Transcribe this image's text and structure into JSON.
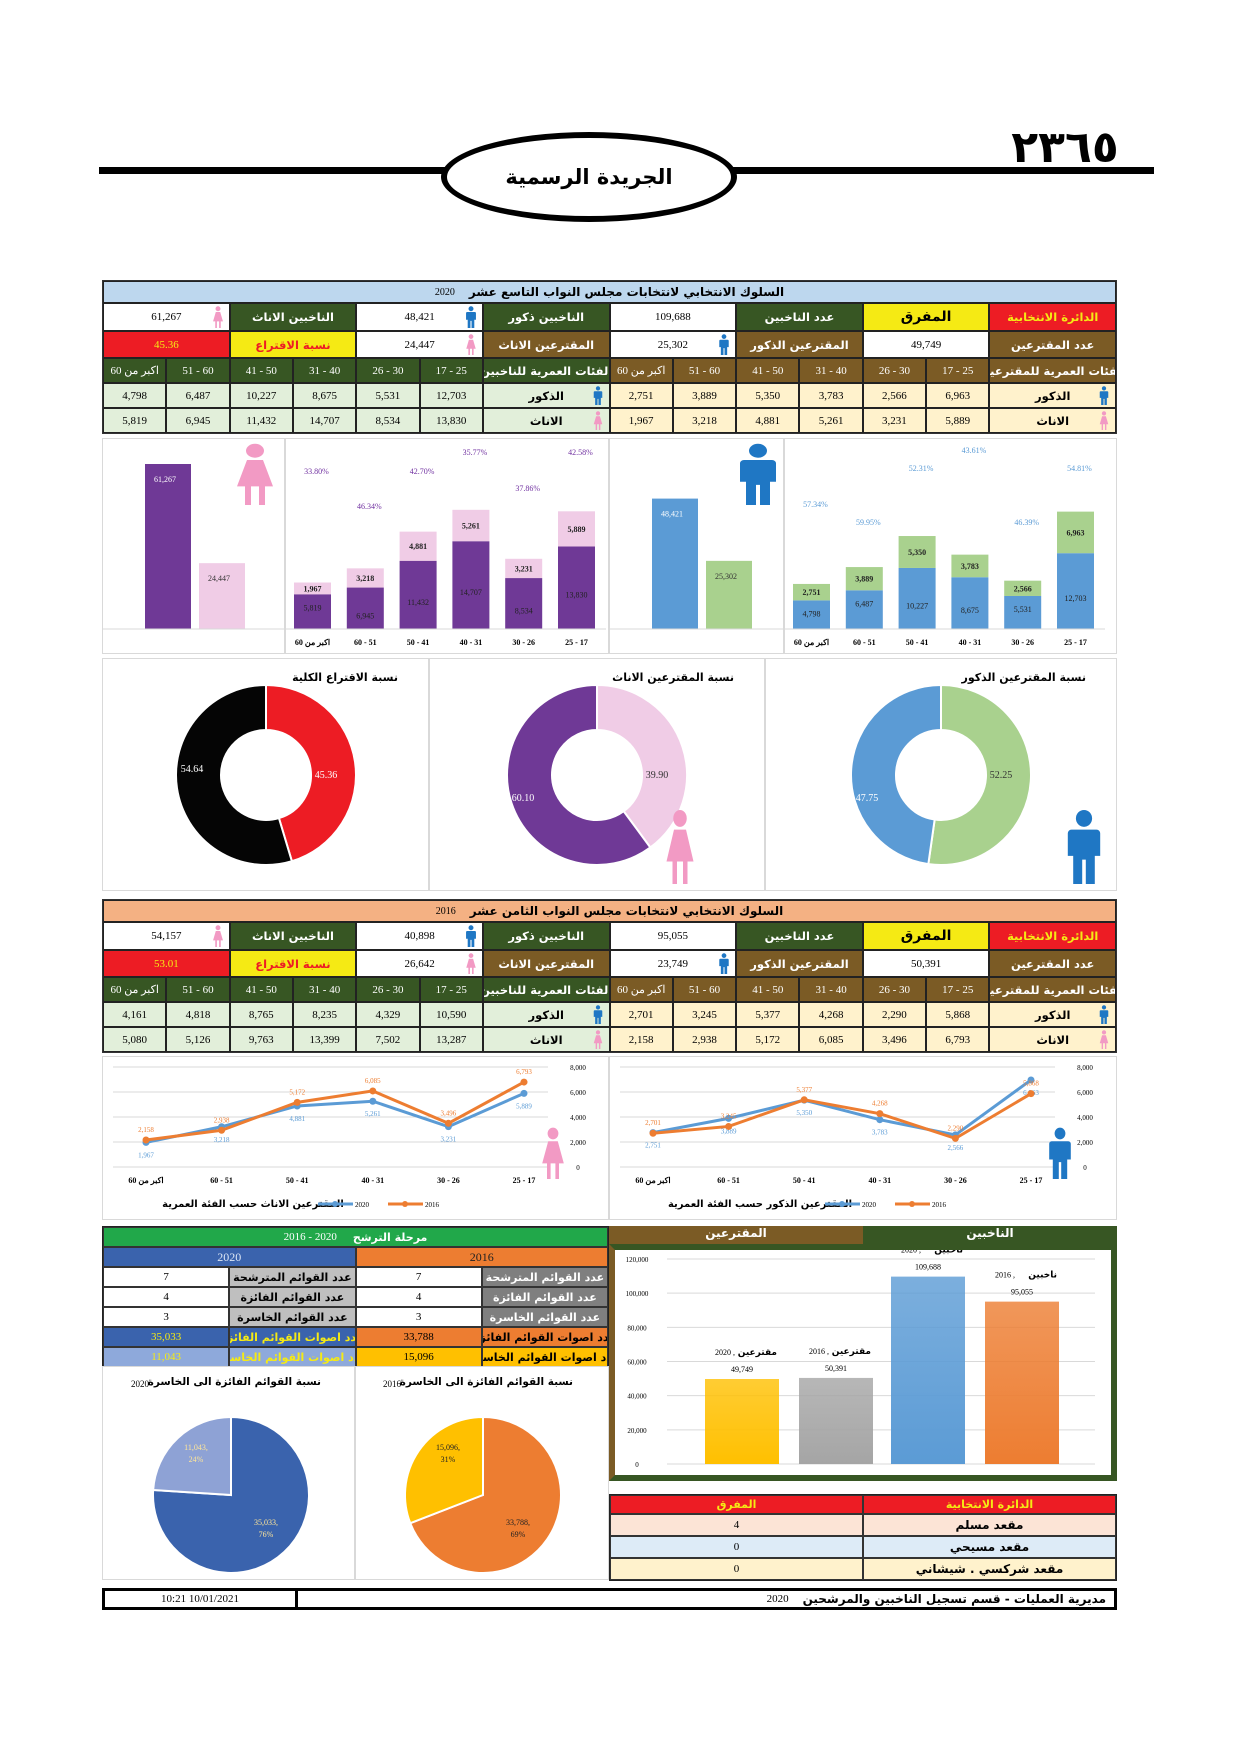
{
  "page": {
    "number": "٢٣٦٥",
    "gazette_title": "الجريدة الرسمية"
  },
  "labels": {
    "district_label": "الدائرة الانتخابية",
    "voters_label": "عدد الناخبين",
    "male_voters_label": "الناخبين ذكور",
    "female_voters_label": "الناخبين الاناث",
    "turnout_count_label": "عدد المقترعين",
    "male_turnout_label": "المقترعين الذكور",
    "female_turnout_label": "المقترعين الاناث",
    "turnout_pct_label": "نسبة الاقتراع",
    "voting_age_label": "الفئات العمرية للمقترعين",
    "voters_age_label": "الفئات العمرية للناخبين",
    "males_label": "الذكور",
    "females_label": "الاناث",
    "age_groups": [
      "25 - 17",
      "30 - 26",
      "40 - 31",
      "50 - 41",
      "60 - 51",
      "اكبر من 60"
    ]
  },
  "sections": [
    {
      "title": "السلوك الانتخابي لانتخابات مجلس النواب التاسع عشر",
      "year": "2020",
      "header_color": "#bdd7ee",
      "district": "المفرق",
      "voters": "109,688",
      "male_voters": "48,421",
      "female_voters": "61,267",
      "turnout_count": "49,749",
      "male_turnout": "25,302",
      "female_turnout": "24,447",
      "turnout_pct": "45.36",
      "voting_males": [
        "6,963",
        "2,566",
        "3,783",
        "5,350",
        "3,889",
        "2,751"
      ],
      "voting_females": [
        "5,889",
        "3,231",
        "5,261",
        "4,881",
        "3,218",
        "1,967"
      ],
      "voters_males": [
        "12,703",
        "5,531",
        "8,675",
        "10,227",
        "6,487",
        "4,798"
      ],
      "voters_females": [
        "13,830",
        "8,534",
        "14,707",
        "11,432",
        "6,945",
        "5,819"
      ]
    },
    {
      "title": "السلوك الانتخابي لانتخابات مجلس النواب الثامن عشر",
      "year": "2016",
      "header_color": "#f4b183",
      "district": "المفرق",
      "voters": "95,055",
      "male_voters": "40,898",
      "female_voters": "54,157",
      "turnout_count": "50,391",
      "male_turnout": "23,749",
      "female_turnout": "26,642",
      "turnout_pct": "53.01",
      "voting_males": [
        "5,868",
        "2,290",
        "4,268",
        "5,377",
        "3,245",
        "2,701"
      ],
      "voting_females": [
        "6,793",
        "3,496",
        "6,085",
        "5,172",
        "2,938",
        "2,158"
      ],
      "voters_males": [
        "10,590",
        "4,329",
        "8,235",
        "8,765",
        "4,818",
        "4,161"
      ],
      "voters_females": [
        "13,287",
        "7,502",
        "13,399",
        "9,763",
        "5,126",
        "5,080"
      ]
    }
  ],
  "candidacy": {
    "title": "مرحلة الترشح",
    "range": "2020 - 2016",
    "years": [
      {
        "year": "2016",
        "color": "#ed7d31",
        "rows": [
          {
            "label": "عدد القوائم المترشحة",
            "value": "7"
          },
          {
            "label": "عدد القوائم الفائزة",
            "value": "4"
          },
          {
            "label": "عدد القوائم الخاسرة",
            "value": "3"
          },
          {
            "label": "عدد اصوات القوائم الفائزة",
            "value": "33,788"
          },
          {
            "label": "عدد اصوات القوائم الخاسرة",
            "value": "15,096"
          }
        ]
      },
      {
        "year": "2020",
        "color": "#3a63ad",
        "rows": [
          {
            "label": "عدد القوائم المترشحة",
            "value": "7"
          },
          {
            "label": "عدد القوائم الفائزة",
            "value": "4"
          },
          {
            "label": "عدد القوائم الخاسرة",
            "value": "3"
          },
          {
            "label": "عدد اصوات القوائم الفائزة",
            "value": "35,033"
          },
          {
            "label": "عدد اصوات القوائم الخاسرة",
            "value": "11,043"
          }
        ]
      }
    ]
  },
  "totals_headers": {
    "voting": "المقترعين",
    "voters": "الناخبين"
  },
  "seats": {
    "header_district": "الدائرة الانتخابية",
    "header_name": "المفرق",
    "rows": [
      {
        "label": "مقعد مسلم",
        "value": "4",
        "color": "#fce4d6"
      },
      {
        "label": "مقعد مسيحي",
        "value": "0",
        "color": "#ddebf7"
      },
      {
        "label": "مقعد شركسي . شيشاني",
        "value": "0",
        "color": "#fff2cc"
      }
    ]
  },
  "footer": {
    "department": "مديرية العمليات - قسم تسجيل الناخبين والمرشحين",
    "year": "2020",
    "timestamp": "10/01/2021 10:21"
  },
  "chart_data": [
    {
      "id": "female_totals_2020",
      "type": "bar",
      "values": [
        61267,
        24447
      ],
      "colors": [
        "#6f3996",
        "#f0cce6"
      ]
    },
    {
      "id": "female_by_age_2020",
      "type": "bar",
      "stacked": true,
      "categories": [
        "اكبر من 60",
        "60 - 51",
        "50 - 41",
        "40 - 31",
        "30 - 26",
        "25 - 17"
      ],
      "voters": [
        5819,
        6945,
        11432,
        14707,
        8534,
        13830
      ],
      "voting": [
        1967,
        3218,
        4881,
        5261,
        3231,
        5889
      ],
      "percent_labels": [
        "33.80%",
        "46.34%",
        "42.70%",
        "35.77%",
        "37.86%",
        "42.58%"
      ],
      "colors": [
        "#6f3996",
        "#f0cce6",
        "#7030a0"
      ],
      "ylim": [
        0,
        32000
      ]
    },
    {
      "id": "male_totals_2020",
      "type": "bar",
      "values": [
        48421,
        25302
      ],
      "colors": [
        "#5b9bd5",
        "#a9d18e"
      ]
    },
    {
      "id": "male_by_age_2020",
      "type": "bar",
      "stacked": true,
      "categories": [
        "اكبر من 60",
        "60 - 51",
        "50 - 41",
        "40 - 31",
        "30 - 26",
        "25 - 17"
      ],
      "voters": [
        4798,
        6487,
        10227,
        8675,
        5531,
        12703
      ],
      "voting": [
        2751,
        3889,
        5350,
        3783,
        2566,
        6963
      ],
      "percent_labels": [
        "57.34%",
        "59.95%",
        "52.31%",
        "43.61%",
        "46.39%",
        "54.81%"
      ],
      "colors": [
        "#5b9bd5",
        "#a9d18e",
        "#5b9bd5"
      ],
      "ylim": [
        0,
        32000
      ]
    },
    {
      "id": "turnout_donut",
      "type": "pie",
      "title": "نسبة الاقتراع الكلية",
      "values": [
        45.36,
        54.64
      ],
      "colors": [
        "#ed1c24",
        "#050505"
      ]
    },
    {
      "id": "female_donut",
      "type": "pie",
      "title": "نسبة المقترعين الاناث",
      "values": [
        39.9,
        60.1
      ],
      "colors": [
        "#f0cce6",
        "#6f3996"
      ]
    },
    {
      "id": "male_donut",
      "type": "pie",
      "title": "نسبة المقترعين الذكور",
      "values": [
        52.25,
        47.75
      ],
      "colors": [
        "#a9d18e",
        "#5b9bd5"
      ]
    },
    {
      "id": "female_line",
      "type": "line",
      "title": "المقترعين الاناث حسب الفئة العمرية",
      "categories": [
        "اكبر من 60",
        "60 - 51",
        "50 - 41",
        "40 - 31",
        "30 - 26",
        "25 - 17"
      ],
      "series": [
        {
          "name": "2020",
          "values": [
            1967,
            3218,
            4881,
            5261,
            3231,
            5889
          ],
          "color": "#5b9bd5"
        },
        {
          "name": "2016",
          "values": [
            2158,
            2938,
            5172,
            6085,
            3496,
            6793
          ],
          "color": "#ed7d31"
        }
      ],
      "ylim": [
        0,
        8000
      ],
      "yticks": [
        0,
        2000,
        4000,
        6000,
        8000
      ]
    },
    {
      "id": "male_line",
      "type": "line",
      "title": "المقترعين الذكور حسب الفئة العمرية",
      "categories": [
        "اكبر من 60",
        "60 - 51",
        "50 - 41",
        "40 - 31",
        "30 - 26",
        "25 - 17"
      ],
      "series": [
        {
          "name": "2020",
          "values": [
            2751,
            3889,
            5350,
            3783,
            2566,
            6963
          ],
          "color": "#5b9bd5"
        },
        {
          "name": "2016",
          "values": [
            2701,
            3245,
            5377,
            4268,
            2290,
            5868
          ],
          "color": "#ed7d31"
        }
      ],
      "ylim": [
        0,
        8000
      ],
      "yticks": [
        0,
        2000,
        4000,
        6000,
        8000
      ]
    },
    {
      "id": "lists_pie_2020",
      "type": "pie",
      "title": "نسبة القوائم الفائزة الى الخاسرة",
      "year": "2020",
      "values": [
        35033,
        11043
      ],
      "percent_labels": [
        "76%",
        "24%"
      ],
      "colors": [
        "#3a63ad",
        "#8ea2d5"
      ]
    },
    {
      "id": "lists_pie_2016",
      "type": "pie",
      "title": "نسبة القوائم الفائزة الى الخاسرة",
      "year": "2016",
      "values": [
        33788,
        15096
      ],
      "percent_labels": [
        "69%",
        "31%"
      ],
      "colors": [
        "#ed7d31",
        "#ffc000"
      ]
    },
    {
      "id": "totals_bar",
      "type": "bar",
      "categories": [
        "مقترعين",
        "مقترعين",
        "ناخبين",
        "ناخبين"
      ],
      "years": [
        "2020",
        "2016",
        "2020",
        "2016"
      ],
      "values": [
        49749,
        50391,
        109688,
        95055
      ],
      "colors": [
        "#ffc000",
        "#a5a5a5",
        "#5b9bd5",
        "#ed7d31"
      ],
      "ylim": [
        0,
        120000
      ],
      "yticks": [
        0,
        20000,
        40000,
        60000,
        80000,
        100000,
        120000
      ]
    }
  ]
}
